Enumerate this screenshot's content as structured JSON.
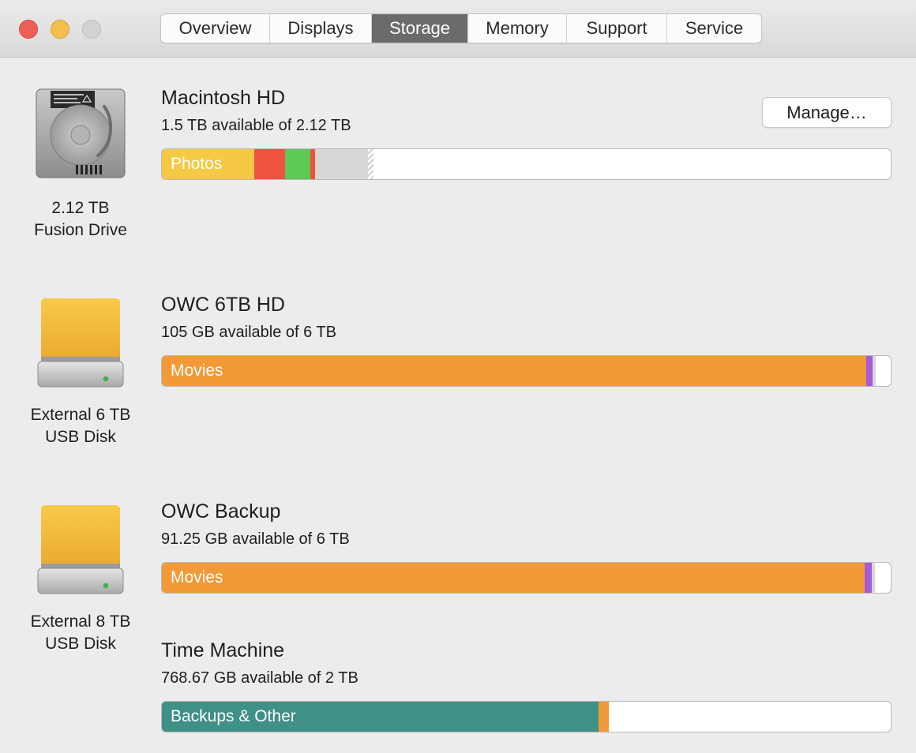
{
  "window": {
    "controls": [
      "close",
      "minimize",
      "zoom"
    ],
    "tabs": [
      {
        "label": "Overview",
        "active": false
      },
      {
        "label": "Displays",
        "active": false
      },
      {
        "label": "Storage",
        "active": true
      },
      {
        "label": "Memory",
        "active": false
      },
      {
        "label": "Support",
        "active": false
      },
      {
        "label": "Service",
        "active": false
      }
    ]
  },
  "disks": [
    {
      "icon": "hard-drive-icon",
      "caption": [
        "2.12 TB",
        "Fusion Drive"
      ],
      "volumes": [
        {
          "name": "Macintosh HD",
          "available": "1.5 TB available of 2.12 TB",
          "button": "Manage…",
          "segments": [
            {
              "label": "Photos",
              "color": "#f6c945",
              "fraction": 0.127
            },
            {
              "label": "",
              "color": "#ee5241",
              "fraction": 0.042
            },
            {
              "label": "",
              "color": "#5ec955",
              "fraction": 0.035
            },
            {
              "label": "",
              "color": "#ee5241",
              "fraction": 0.006
            },
            {
              "label": "",
              "color": "#d8d8d8",
              "fraction": 0.073
            },
            {
              "label": "",
              "color": "hatch",
              "fraction": 0.007
            }
          ]
        }
      ]
    },
    {
      "icon": "external-drive-icon",
      "caption": [
        "External 6 TB",
        "USB Disk"
      ],
      "volumes": [
        {
          "name": "OWC 6TB HD",
          "available": "105 GB available of 6 TB",
          "segments": [
            {
              "label": "Movies",
              "color": "#f19a37",
              "fraction": 0.966
            },
            {
              "label": "",
              "color": "#a55bdb",
              "fraction": 0.009
            },
            {
              "label": "",
              "color": "#d8d8d8",
              "fraction": 0.004
            }
          ]
        }
      ]
    },
    {
      "icon": "external-drive-icon",
      "caption": [
        "External 8 TB",
        "USB Disk"
      ],
      "volumes": [
        {
          "name": "OWC Backup",
          "available": "91.25 GB available of 6 TB",
          "segments": [
            {
              "label": "Movies",
              "color": "#f19a37",
              "fraction": 0.964
            },
            {
              "label": "",
              "color": "#a55bdb",
              "fraction": 0.01
            },
            {
              "label": "",
              "color": "#d8d8d8",
              "fraction": 0.004
            }
          ]
        },
        {
          "name": "Time Machine",
          "available": "768.67 GB available of 2 TB",
          "segments": [
            {
              "label": "Backups & Other",
              "color": "#3f9086",
              "fraction": 0.599
            },
            {
              "label": "",
              "color": "#f19a37",
              "fraction": 0.014
            }
          ]
        }
      ]
    }
  ]
}
